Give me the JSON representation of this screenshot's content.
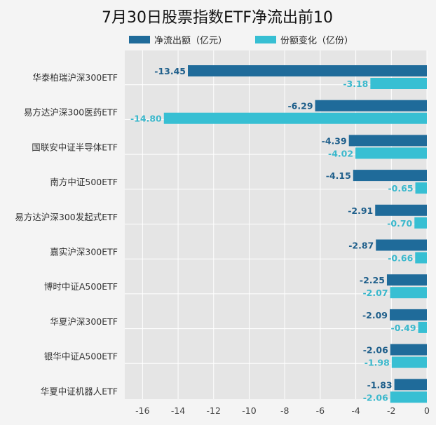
{
  "chart_data": {
    "type": "bar",
    "orientation": "horizontal",
    "title": "7月30日股票指数ETF净流出前10",
    "categories": [
      "华泰柏瑞沪深300ETF",
      "易方达沪深300医药ETF",
      "国联安中证半导体ETF",
      "南方中证500ETF",
      "易方达沪深300发起式ETF",
      "嘉实沪深300ETF",
      "博时中证A500ETF",
      "华夏沪深300ETF",
      "银华中证A500ETF",
      "华夏中证机器人ETF"
    ],
    "series": [
      {
        "name": "净流出额（亿元）",
        "color": "#1f6b9a",
        "values": [
          -13.45,
          -6.29,
          -4.39,
          -4.15,
          -2.91,
          -2.87,
          -2.25,
          -2.09,
          -2.06,
          -1.83
        ],
        "labels": [
          "-13.45",
          "-6.29",
          "-4.39",
          "-4.15",
          "-2.91",
          "-2.87",
          "-2.25",
          "-2.09",
          "-2.06",
          "-1.83"
        ]
      },
      {
        "name": "份额变化（亿份）",
        "color": "#37bfd3",
        "values": [
          -3.18,
          -14.8,
          -4.02,
          -0.65,
          -0.7,
          -0.66,
          -2.07,
          -0.49,
          -1.98,
          -2.06
        ],
        "labels": [
          "-3.18",
          "-14.80",
          "-4.02",
          "-0.65",
          "-0.70",
          "-0.66",
          "-2.07",
          "-0.49",
          "-1.98",
          "-2.06"
        ]
      }
    ],
    "xlim": [
      -17,
      0
    ],
    "xticks": [
      "-16",
      "-14",
      "-12",
      "-10",
      "-8",
      "-6",
      "-4",
      "-2",
      "0"
    ],
    "grid": true,
    "legend": "top"
  }
}
